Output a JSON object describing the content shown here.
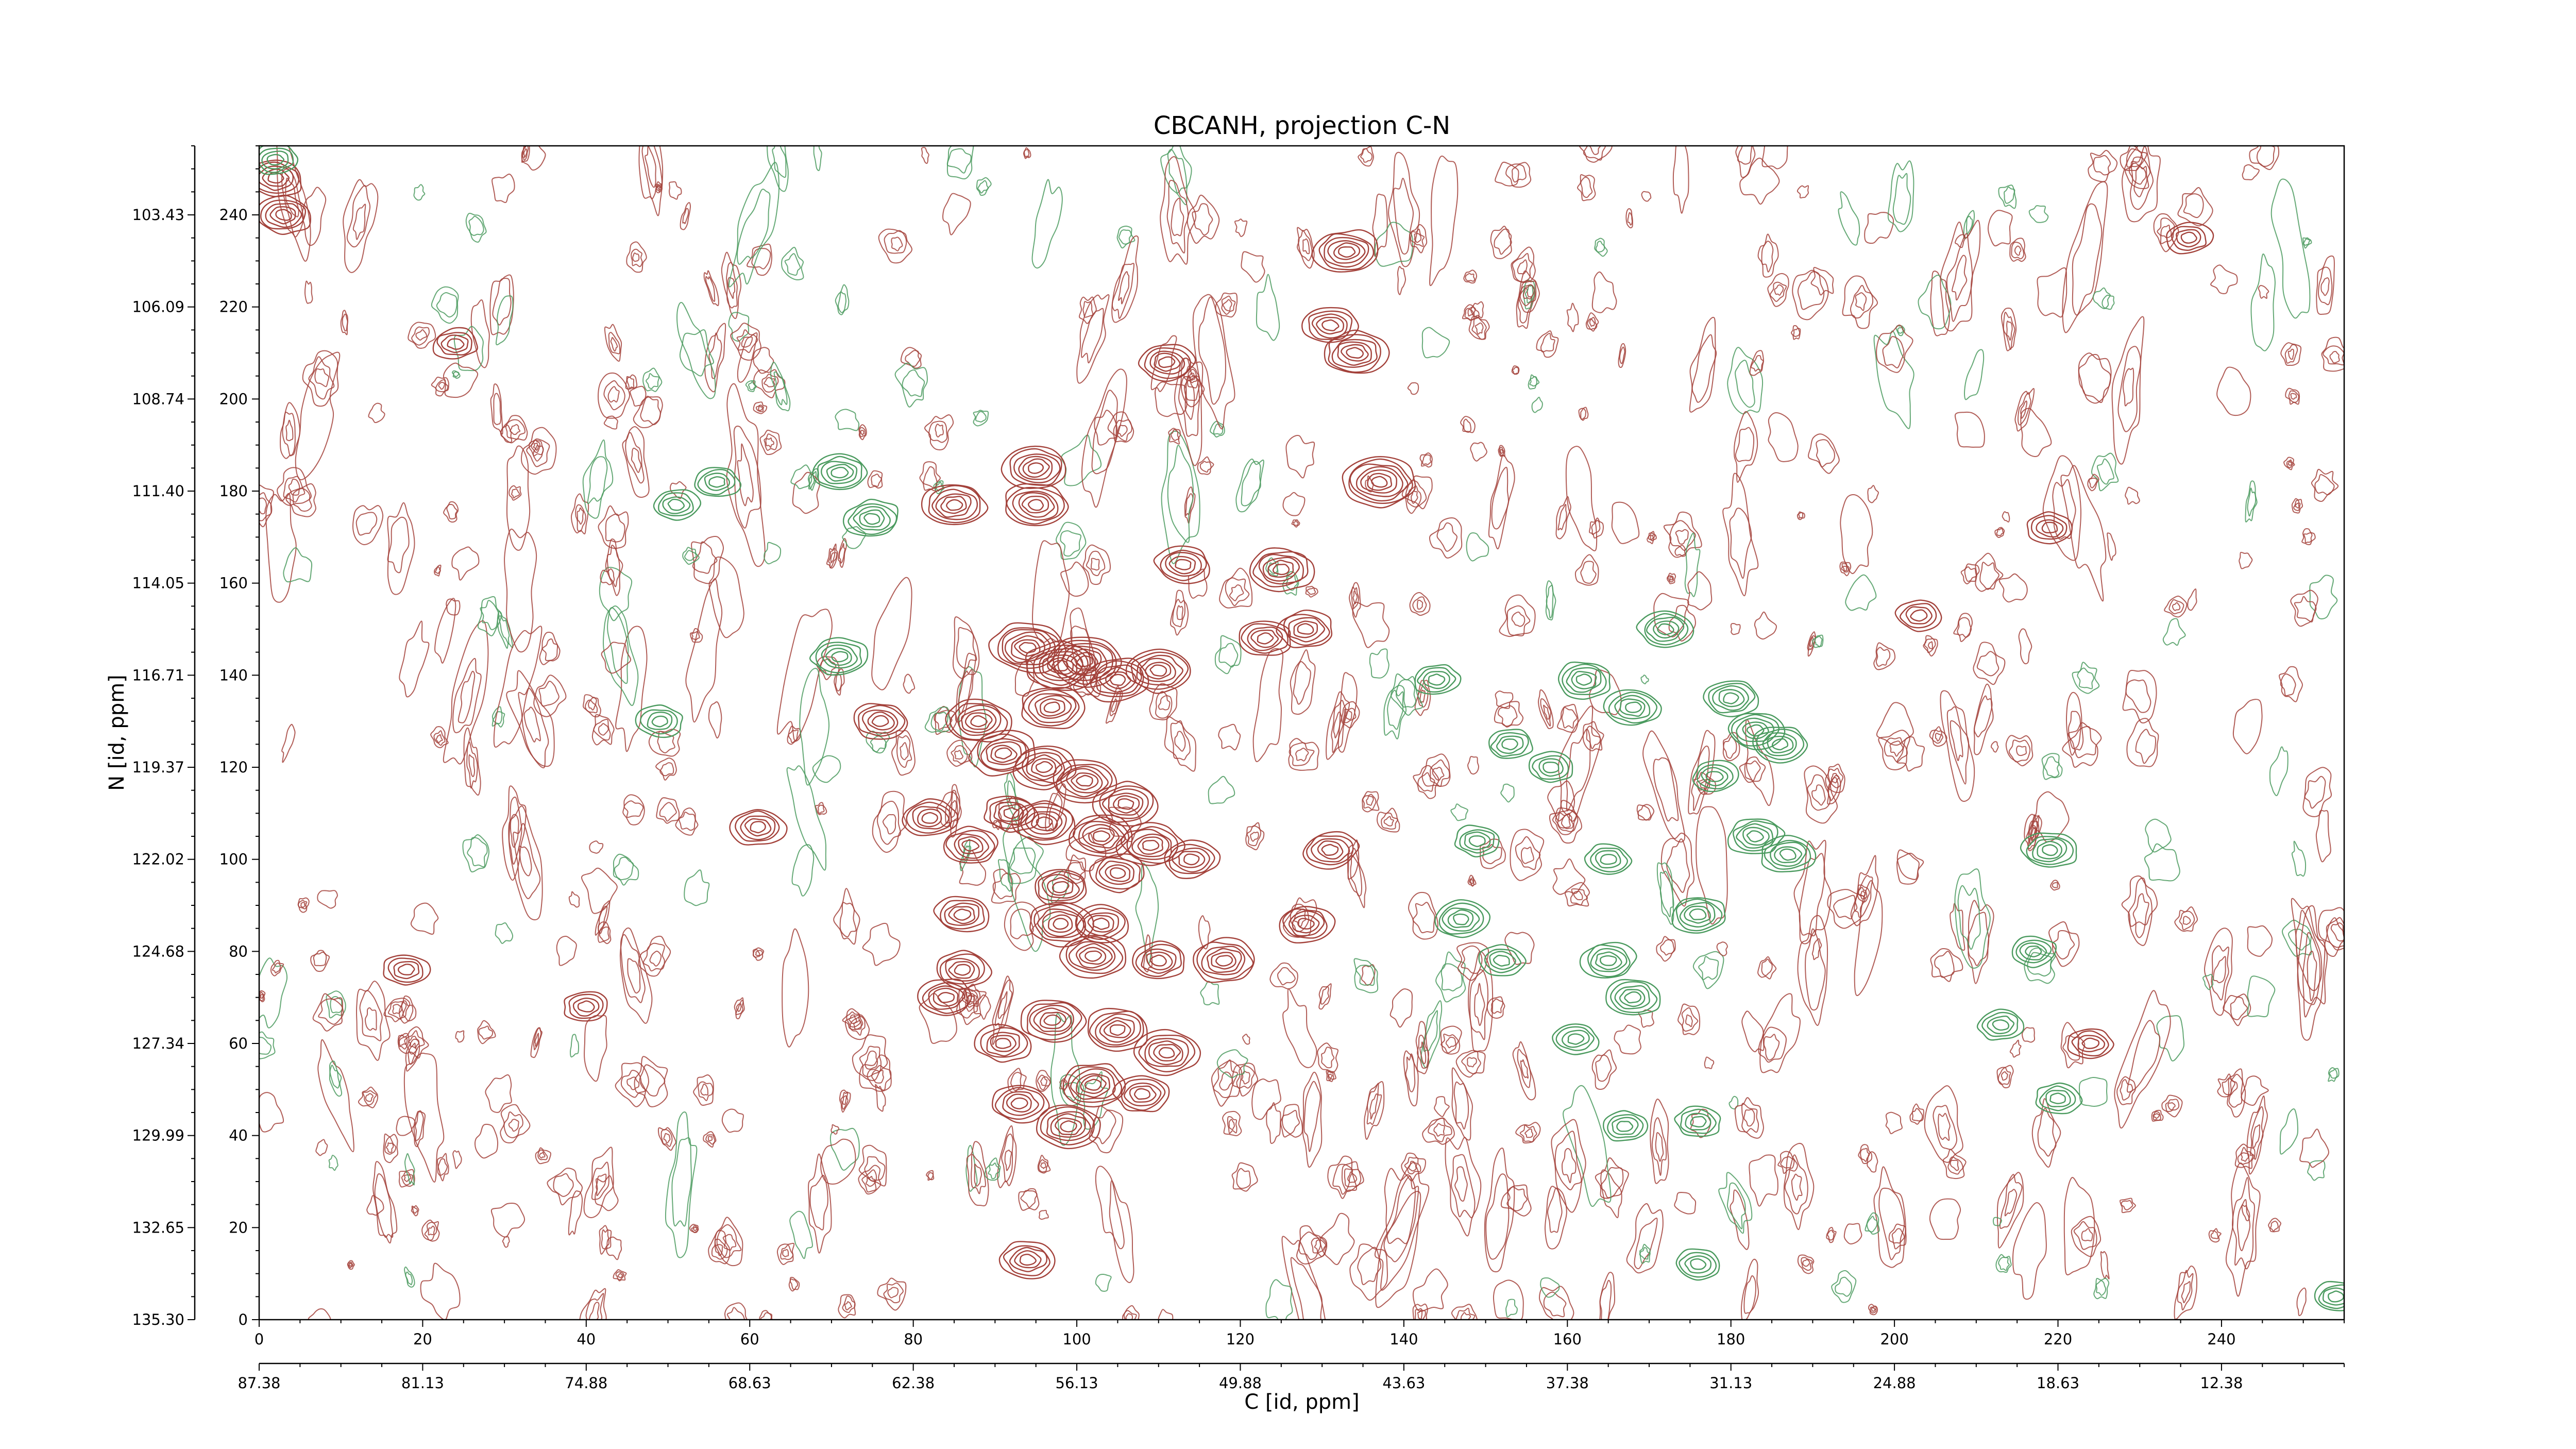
{
  "chart_data": {
    "type": "contour",
    "title": "CBCANH, projection C-N",
    "xlabel": "C [id, ppm]",
    "ylabel": "N [id, ppm]",
    "x_index_range": [
      0,
      255
    ],
    "y_index_range": [
      0,
      255
    ],
    "x_index_ticks": [
      "0",
      "20",
      "40",
      "60",
      "80",
      "100",
      "120",
      "140",
      "160",
      "180",
      "200",
      "220",
      "240"
    ],
    "y_index_ticks": [
      "0",
      "20",
      "40",
      "60",
      "80",
      "100",
      "120",
      "140",
      "160",
      "180",
      "200",
      "220",
      "240"
    ],
    "x_ppm_ticks": [
      "87.38",
      "81.13",
      "74.88",
      "68.63",
      "62.38",
      "56.13",
      "49.88",
      "43.63",
      "37.38",
      "31.13",
      "24.88",
      "18.63",
      "12.38"
    ],
    "y_ppm_ticks": [
      "135.30",
      "132.65",
      "129.99",
      "127.34",
      "124.68",
      "122.02",
      "119.37",
      "116.71",
      "114.05",
      "111.40",
      "108.74",
      "106.09",
      "103.43"
    ],
    "series": [
      {
        "sign": "positive",
        "color": "#a3413a"
      },
      {
        "sign": "negative",
        "color": "#4a9a5e"
      }
    ],
    "peaks": [
      {
        "x": 94,
        "y": 146,
        "sign": "positive",
        "strength": 5
      },
      {
        "x": 98,
        "y": 142,
        "sign": "positive",
        "strength": 5
      },
      {
        "x": 101,
        "y": 143,
        "sign": "positive",
        "strength": 5
      },
      {
        "x": 105,
        "y": 139,
        "sign": "positive",
        "strength": 4
      },
      {
        "x": 110,
        "y": 141,
        "sign": "positive",
        "strength": 4
      },
      {
        "x": 97,
        "y": 133,
        "sign": "positive",
        "strength": 4
      },
      {
        "x": 88,
        "y": 130,
        "sign": "positive",
        "strength": 4
      },
      {
        "x": 91,
        "y": 123,
        "sign": "positive",
        "strength": 4
      },
      {
        "x": 96,
        "y": 120,
        "sign": "positive",
        "strength": 4
      },
      {
        "x": 101,
        "y": 117,
        "sign": "positive",
        "strength": 4
      },
      {
        "x": 106,
        "y": 112,
        "sign": "positive",
        "strength": 4
      },
      {
        "x": 92,
        "y": 110,
        "sign": "positive",
        "strength": 3
      },
      {
        "x": 96,
        "y": 108,
        "sign": "positive",
        "strength": 4
      },
      {
        "x": 103,
        "y": 105,
        "sign": "positive",
        "strength": 4
      },
      {
        "x": 109,
        "y": 103,
        "sign": "positive",
        "strength": 4
      },
      {
        "x": 87,
        "y": 103,
        "sign": "positive",
        "strength": 3
      },
      {
        "x": 82,
        "y": 109,
        "sign": "positive",
        "strength": 3
      },
      {
        "x": 98,
        "y": 94,
        "sign": "positive",
        "strength": 3
      },
      {
        "x": 105,
        "y": 97,
        "sign": "positive",
        "strength": 3
      },
      {
        "x": 114,
        "y": 100,
        "sign": "positive",
        "strength": 3
      },
      {
        "x": 98,
        "y": 86,
        "sign": "positive",
        "strength": 4
      },
      {
        "x": 103,
        "y": 86,
        "sign": "positive",
        "strength": 3
      },
      {
        "x": 102,
        "y": 79,
        "sign": "positive",
        "strength": 4
      },
      {
        "x": 110,
        "y": 78,
        "sign": "positive",
        "strength": 3
      },
      {
        "x": 118,
        "y": 78,
        "sign": "positive",
        "strength": 4
      },
      {
        "x": 86,
        "y": 88,
        "sign": "positive",
        "strength": 3
      },
      {
        "x": 86,
        "y": 76,
        "sign": "positive",
        "strength": 3
      },
      {
        "x": 84,
        "y": 70,
        "sign": "positive",
        "strength": 3
      },
      {
        "x": 91,
        "y": 60,
        "sign": "positive",
        "strength": 3
      },
      {
        "x": 97,
        "y": 65,
        "sign": "positive",
        "strength": 4
      },
      {
        "x": 105,
        "y": 63,
        "sign": "positive",
        "strength": 4
      },
      {
        "x": 111,
        "y": 58,
        "sign": "positive",
        "strength": 4
      },
      {
        "x": 102,
        "y": 51,
        "sign": "positive",
        "strength": 4
      },
      {
        "x": 108,
        "y": 49,
        "sign": "positive",
        "strength": 3
      },
      {
        "x": 99,
        "y": 42,
        "sign": "positive",
        "strength": 4
      },
      {
        "x": 93,
        "y": 47,
        "sign": "positive",
        "strength": 3
      },
      {
        "x": 94,
        "y": 13,
        "sign": "positive",
        "strength": 3
      },
      {
        "x": 95,
        "y": 177,
        "sign": "positive",
        "strength": 4
      },
      {
        "x": 95,
        "y": 185,
        "sign": "positive",
        "strength": 4
      },
      {
        "x": 85,
        "y": 177,
        "sign": "positive",
        "strength": 4
      },
      {
        "x": 113,
        "y": 164,
        "sign": "positive",
        "strength": 3
      },
      {
        "x": 111,
        "y": 208,
        "sign": "positive",
        "strength": 3
      },
      {
        "x": 133,
        "y": 232,
        "sign": "positive",
        "strength": 4
      },
      {
        "x": 134,
        "y": 210,
        "sign": "positive",
        "strength": 4
      },
      {
        "x": 131,
        "y": 216,
        "sign": "positive",
        "strength": 3
      },
      {
        "x": 137,
        "y": 182,
        "sign": "positive",
        "strength": 5
      },
      {
        "x": 128,
        "y": 150,
        "sign": "positive",
        "strength": 3
      },
      {
        "x": 123,
        "y": 148,
        "sign": "positive",
        "strength": 3
      },
      {
        "x": 125,
        "y": 163,
        "sign": "positive",
        "strength": 4
      },
      {
        "x": 131,
        "y": 102,
        "sign": "positive",
        "strength": 3
      },
      {
        "x": 128,
        "y": 86,
        "sign": "positive",
        "strength": 3
      },
      {
        "x": 76,
        "y": 130,
        "sign": "positive",
        "strength": 3
      },
      {
        "x": 61,
        "y": 107,
        "sign": "positive",
        "strength": 3
      },
      {
        "x": 40,
        "y": 68,
        "sign": "positive",
        "strength": 2
      },
      {
        "x": 18,
        "y": 76,
        "sign": "positive",
        "strength": 2
      },
      {
        "x": 2,
        "y": 248,
        "sign": "positive",
        "strength": 3
      },
      {
        "x": 3,
        "y": 240,
        "sign": "positive",
        "strength": 3
      },
      {
        "x": 24,
        "y": 212,
        "sign": "positive",
        "strength": 2
      },
      {
        "x": 203,
        "y": 153,
        "sign": "positive",
        "strength": 2
      },
      {
        "x": 219,
        "y": 172,
        "sign": "positive",
        "strength": 2
      },
      {
        "x": 236,
        "y": 235,
        "sign": "positive",
        "strength": 2
      },
      {
        "x": 224,
        "y": 60,
        "sign": "positive",
        "strength": 2
      },
      {
        "x": 71,
        "y": 184,
        "sign": "negative",
        "strength": 3
      },
      {
        "x": 75,
        "y": 174,
        "sign": "negative",
        "strength": 3
      },
      {
        "x": 51,
        "y": 177,
        "sign": "negative",
        "strength": 2
      },
      {
        "x": 56,
        "y": 182,
        "sign": "negative",
        "strength": 2
      },
      {
        "x": 71,
        "y": 144,
        "sign": "negative",
        "strength": 3
      },
      {
        "x": 49,
        "y": 130,
        "sign": "negative",
        "strength": 2
      },
      {
        "x": 168,
        "y": 133,
        "sign": "negative",
        "strength": 3
      },
      {
        "x": 162,
        "y": 139,
        "sign": "negative",
        "strength": 3
      },
      {
        "x": 172,
        "y": 150,
        "sign": "negative",
        "strength": 3
      },
      {
        "x": 180,
        "y": 135,
        "sign": "negative",
        "strength": 3
      },
      {
        "x": 183,
        "y": 128,
        "sign": "negative",
        "strength": 3
      },
      {
        "x": 178,
        "y": 118,
        "sign": "negative",
        "strength": 2
      },
      {
        "x": 186,
        "y": 125,
        "sign": "negative",
        "strength": 3
      },
      {
        "x": 183,
        "y": 105,
        "sign": "negative",
        "strength": 3
      },
      {
        "x": 187,
        "y": 101,
        "sign": "negative",
        "strength": 3
      },
      {
        "x": 176,
        "y": 88,
        "sign": "negative",
        "strength": 3
      },
      {
        "x": 165,
        "y": 100,
        "sign": "negative",
        "strength": 2
      },
      {
        "x": 158,
        "y": 120,
        "sign": "negative",
        "strength": 2
      },
      {
        "x": 153,
        "y": 125,
        "sign": "negative",
        "strength": 2
      },
      {
        "x": 147,
        "y": 87,
        "sign": "negative",
        "strength": 3
      },
      {
        "x": 152,
        "y": 78,
        "sign": "negative",
        "strength": 2
      },
      {
        "x": 165,
        "y": 78,
        "sign": "negative",
        "strength": 3
      },
      {
        "x": 168,
        "y": 70,
        "sign": "negative",
        "strength": 3
      },
      {
        "x": 161,
        "y": 61,
        "sign": "negative",
        "strength": 2
      },
      {
        "x": 176,
        "y": 43,
        "sign": "negative",
        "strength": 2
      },
      {
        "x": 167,
        "y": 42,
        "sign": "negative",
        "strength": 2
      },
      {
        "x": 144,
        "y": 139,
        "sign": "negative",
        "strength": 2
      },
      {
        "x": 149,
        "y": 104,
        "sign": "negative",
        "strength": 2
      },
      {
        "x": 219,
        "y": 102,
        "sign": "negative",
        "strength": 3
      },
      {
        "x": 217,
        "y": 80,
        "sign": "negative",
        "strength": 2
      },
      {
        "x": 213,
        "y": 64,
        "sign": "negative",
        "strength": 2
      },
      {
        "x": 220,
        "y": 48,
        "sign": "negative",
        "strength": 2
      },
      {
        "x": 176,
        "y": 12,
        "sign": "negative",
        "strength": 2
      },
      {
        "x": 254,
        "y": 5,
        "sign": "negative",
        "strength": 2
      },
      {
        "x": 2,
        "y": 252,
        "sign": "negative",
        "strength": 2
      }
    ]
  }
}
